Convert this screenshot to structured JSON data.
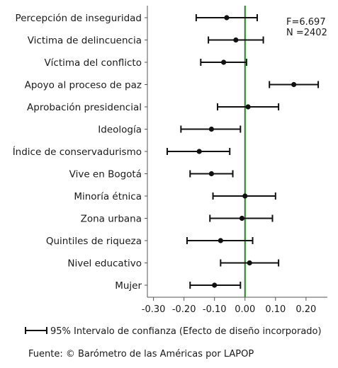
{
  "chart_data": {
    "type": "scatter",
    "subtype": "coefficient-plot",
    "categories": [
      "Percepción de inseguridad",
      "Victima de delincuencia",
      "Víctima del conflicto",
      "Apoyo al proceso de paz",
      "Aprobación presidencial",
      "Ideología",
      "Índice de conservadurismo",
      "Vive en Bogotá",
      "Minoría étnica",
      "Zona urbana",
      "Quintiles de riqueza",
      "Nivel educativo",
      "Mujer"
    ],
    "estimates": [
      -0.06,
      -0.03,
      -0.07,
      0.16,
      0.01,
      -0.11,
      -0.15,
      -0.11,
      0.0,
      -0.01,
      -0.08,
      0.015,
      -0.1
    ],
    "ci_low": [
      -0.16,
      -0.12,
      -0.145,
      0.08,
      -0.09,
      -0.21,
      -0.255,
      -0.18,
      -0.105,
      -0.115,
      -0.19,
      -0.08,
      -0.18
    ],
    "ci_high": [
      0.04,
      0.06,
      0.005,
      0.24,
      0.11,
      -0.015,
      -0.05,
      -0.04,
      0.1,
      0.09,
      0.025,
      0.11,
      -0.015
    ],
    "xlim": [
      -0.32,
      0.27
    ],
    "xticks": [
      -0.3,
      -0.2,
      -0.1,
      0.0,
      0.1,
      0.2
    ],
    "xtick_labels": [
      "-0.30",
      "-0.20",
      "-0.10",
      "0.00",
      "0.10",
      "0.20"
    ],
    "reference_line": 0.0,
    "reference_color": "#1a8a1a",
    "stats": {
      "f": "F=6.697",
      "n": "N =2402"
    },
    "legend": "95% Intervalo de confianza (Efecto de diseño incorporado)",
    "source": "Fuente: © Barómetro de las Américas por LAPOP"
  }
}
